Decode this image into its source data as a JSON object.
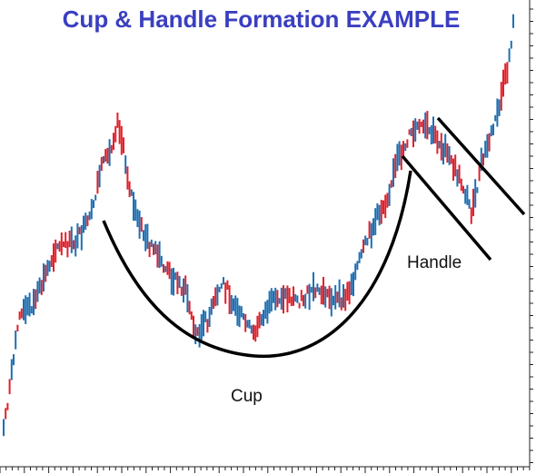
{
  "title": "Cup & Handle Formation EXAMPLE",
  "chart_data": {
    "type": "ohlc",
    "title": "Cup & Handle Formation EXAMPLE",
    "xlabel": "",
    "ylabel": "",
    "grid": false,
    "bar_colors": {
      "up": "#1f6fb0",
      "down": "#e0202a"
    },
    "annotations": [
      {
        "text": "Cup",
        "shape": "rounded cup arc"
      },
      {
        "text": "Handle",
        "shape": "parallel downward channel"
      }
    ],
    "close_path": [
      4,
      8,
      20,
      42,
      58,
      66,
      70,
      74,
      78,
      86,
      93,
      96,
      103,
      112,
      118,
      130,
      140,
      146,
      150,
      156,
      162,
      166,
      170,
      176,
      182,
      188,
      195,
      200,
      206,
      212,
      218,
      224,
      230,
      236,
      242,
      248,
      254,
      258,
      262,
      266,
      272,
      278,
      282,
      286,
      292,
      298,
      304,
      308,
      312,
      316,
      322,
      326,
      330,
      336,
      342,
      346,
      350,
      356,
      360,
      366,
      372,
      376,
      382,
      386,
      392,
      398,
      404,
      410,
      416,
      420,
      426,
      430,
      436,
      440,
      444,
      448,
      452,
      456,
      460,
      464,
      468,
      472,
      476,
      480,
      486,
      490,
      496,
      502,
      508,
      514,
      518,
      524,
      528,
      532,
      536,
      540,
      544,
      548,
      552,
      556,
      560,
      562,
      566
    ]
  },
  "labels": {
    "cup": "Cup",
    "handle": "Handle"
  }
}
